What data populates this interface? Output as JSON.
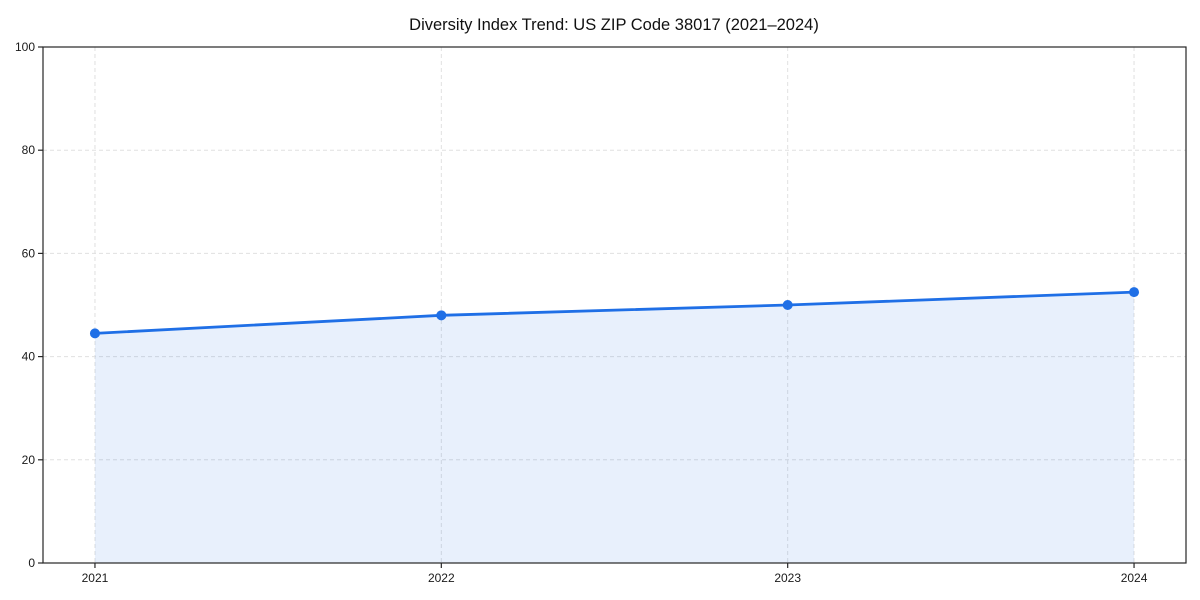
{
  "page": {
    "background_color": "#ffffff"
  },
  "chart_data": {
    "type": "area",
    "title": "Diversity Index Trend: US ZIP Code 38017 (2021–2024)",
    "categories": [
      "2021",
      "2022",
      "2023",
      "2024"
    ],
    "values": [
      44.5,
      48,
      50,
      52.5
    ],
    "xlabel": "",
    "ylabel": "",
    "ylim": [
      0,
      100
    ],
    "yticks": [
      0,
      20,
      40,
      60,
      80,
      100
    ],
    "grid": true,
    "grid_style": "dashed",
    "legend_position": "none",
    "colors": {
      "line": "#1f6fe6",
      "marker": "#1f6fe6",
      "fill": "rgba(31,111,230,0.10)",
      "grid": "#e0e0e0",
      "spine": "#262626",
      "tick_label": "#1a1a1a",
      "title": "#111111"
    }
  }
}
